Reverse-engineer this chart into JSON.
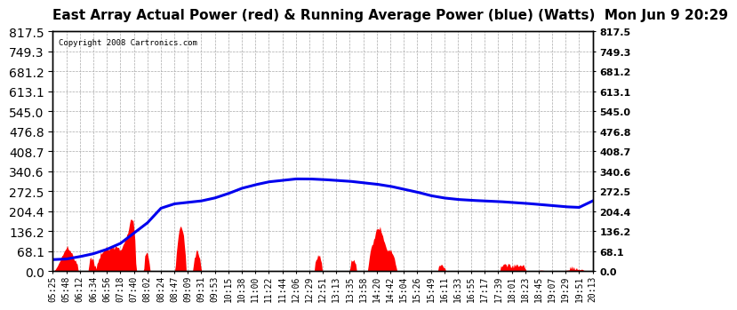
{
  "title": "East Array Actual Power (red) & Running Average Power (blue) (Watts)  Mon Jun 9 20:29",
  "copyright": "Copyright 2008 Cartronics.com",
  "ylabel_right_values": [
    0.0,
    68.1,
    136.2,
    204.4,
    272.5,
    340.6,
    408.7,
    476.8,
    545.0,
    613.1,
    681.2,
    749.3,
    817.5
  ],
  "ymax": 817.5,
  "ymin": 0.0,
  "actual_color": "#FF0000",
  "average_color": "#0000EE",
  "background_color": "#FFFFFF",
  "grid_color": "#AAAAAA",
  "title_fontsize": 11,
  "tick_fontsize": 7,
  "time_labels": [
    "05:25",
    "05:48",
    "06:12",
    "06:34",
    "06:56",
    "07:18",
    "07:40",
    "08:02",
    "08:24",
    "08:47",
    "09:09",
    "09:31",
    "09:53",
    "10:15",
    "10:38",
    "11:00",
    "11:22",
    "11:44",
    "12:06",
    "12:29",
    "12:51",
    "13:13",
    "13:35",
    "13:58",
    "14:20",
    "14:42",
    "15:04",
    "15:26",
    "15:49",
    "16:11",
    "16:33",
    "16:55",
    "17:17",
    "17:39",
    "18:01",
    "18:23",
    "18:45",
    "19:07",
    "19:29",
    "19:51",
    "20:13"
  ],
  "blue_avg_key_x": [
    0,
    1,
    2,
    3,
    4,
    5,
    6,
    7,
    8,
    9,
    10,
    11,
    12,
    13,
    14,
    15,
    16,
    17,
    18,
    19,
    20,
    21,
    22,
    23,
    24,
    25,
    26,
    27,
    28,
    29,
    30,
    31,
    32,
    33,
    34,
    35,
    36,
    37,
    38,
    39,
    40
  ],
  "blue_avg_key_y": [
    40,
    42,
    50,
    60,
    75,
    95,
    130,
    165,
    215,
    230,
    235,
    240,
    250,
    265,
    283,
    295,
    305,
    310,
    315,
    315,
    313,
    310,
    307,
    302,
    297,
    290,
    280,
    270,
    258,
    250,
    245,
    242,
    240,
    238,
    235,
    232,
    228,
    224,
    220,
    218,
    240
  ]
}
